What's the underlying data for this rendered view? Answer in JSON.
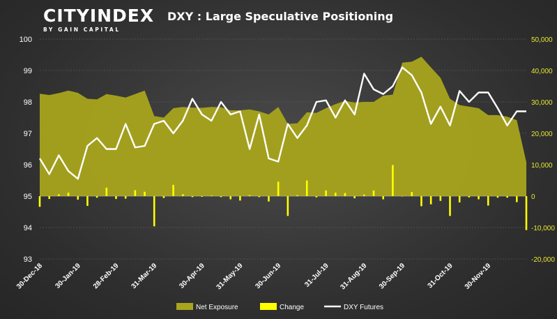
{
  "brand": {
    "name_part1": "CITY",
    "name_part2": "INDEX",
    "tagline": "BY GAIN CAPITAL"
  },
  "chart_data": {
    "type": "combo",
    "title": "DXY : Large Speculative Positioning",
    "x_tick_labels": [
      "30-Dec-18",
      "30-Jan-19",
      "28-Feb-19",
      "31-Mar-19",
      "30-Apr-19",
      "31-May-19",
      "30-Jun-19",
      "31-Jul-19",
      "31-Aug-19",
      "30-Sep-19",
      "31-Oct-19",
      "30-Nov-19"
    ],
    "x_tick_indices": [
      0,
      4,
      8,
      12,
      17,
      21,
      25,
      30,
      34,
      38,
      43,
      47
    ],
    "left_axis": {
      "ylim": [
        93,
        100
      ],
      "ticks": [
        93,
        94,
        95,
        96,
        97,
        98,
        99,
        100
      ]
    },
    "right_axis": {
      "ylim": [
        -20000,
        50000
      ],
      "ticks": [
        -20000,
        -10000,
        0,
        10000,
        20000,
        30000,
        40000,
        50000
      ],
      "tick_labels": [
        "-20,000",
        "-10,000",
        "0",
        "10,000",
        "20,000",
        "30,000",
        "40,000",
        "50,000"
      ]
    },
    "series": [
      {
        "name": "Net Exposure",
        "type": "area",
        "axis": "right",
        "color": "#a8a41e",
        "values": [
          32600,
          32200,
          32800,
          33600,
          32900,
          31000,
          30800,
          32500,
          32000,
          31400,
          32500,
          33600,
          25500,
          25000,
          28000,
          28400,
          28200,
          28100,
          28400,
          28300,
          27300,
          27300,
          27600,
          27000,
          26000,
          28400,
          23000,
          23200,
          26700,
          26500,
          28000,
          29300,
          30300,
          29800,
          30000,
          30000,
          32000,
          32300,
          42500,
          42800,
          44400,
          41000,
          37700,
          31000,
          29000,
          28500,
          28000,
          25800,
          25800,
          25300,
          24200,
          10800
        ]
      },
      {
        "name": "Change",
        "type": "bar",
        "axis": "right",
        "color": "#ffff00",
        "values": [
          -3400,
          -900,
          600,
          1100,
          -1100,
          -3100,
          -500,
          2700,
          -900,
          -800,
          1900,
          1400,
          -9600,
          -600,
          3600,
          600,
          -300,
          -200,
          200,
          -300,
          -1000,
          -1400,
          300,
          -300,
          -1700,
          4600,
          -6300,
          300,
          5000,
          -400,
          1800,
          1100,
          1000,
          -700,
          500,
          1800,
          -1000,
          9900,
          -100,
          1300,
          -3200,
          -2600,
          -1500,
          -6300,
          -2000,
          -400,
          -1000,
          -3000,
          -500,
          -500,
          -1900,
          -10800
        ]
      },
      {
        "name": "DXY Futures",
        "type": "line",
        "axis": "left",
        "color": "#ffffff",
        "values": [
          96.2,
          95.7,
          96.3,
          95.8,
          95.55,
          96.6,
          96.85,
          96.5,
          96.5,
          97.3,
          96.55,
          96.6,
          97.3,
          97.4,
          97.0,
          97.4,
          98.1,
          97.6,
          97.4,
          98.0,
          97.6,
          97.7,
          96.5,
          97.6,
          96.2,
          96.1,
          97.3,
          96.85,
          97.25,
          98.0,
          98.05,
          97.5,
          98.05,
          97.6,
          98.9,
          98.4,
          98.25,
          98.5,
          99.1,
          98.85,
          98.3,
          97.3,
          97.85,
          97.25,
          98.35,
          98.0,
          98.3,
          98.3,
          97.8,
          97.25,
          97.7,
          97.7
        ]
      }
    ],
    "legend_position": "bottom-center",
    "grid": true
  }
}
